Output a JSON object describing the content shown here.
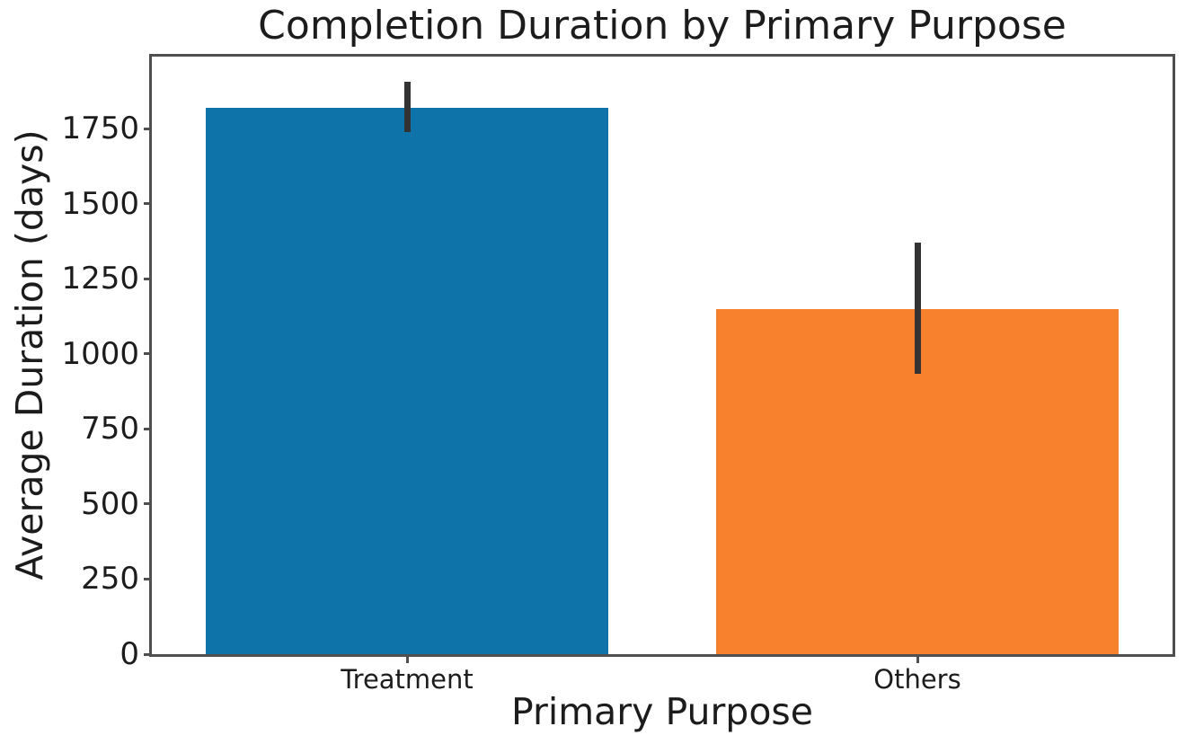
{
  "chart_data": {
    "type": "bar",
    "title": "Completion Duration by Primary Purpose",
    "xlabel": "Primary Purpose",
    "ylabel": "Average Duration (days)",
    "categories": [
      "Treatment",
      "Others"
    ],
    "values": [
      1820,
      1150
    ],
    "error_low": [
      1740,
      935
    ],
    "error_high": [
      1905,
      1370
    ],
    "bar_colors": [
      "#0d73a8",
      "#f8812e"
    ],
    "error_bar_color": "#333333",
    "axis_color": "#4f4f4f",
    "text_color": "#1c1c1c",
    "background": "#ffffff",
    "ylim": [
      0,
      1990
    ],
    "yticks": [
      0,
      250,
      500,
      750,
      1000,
      1250,
      1500,
      1750
    ],
    "grid": false,
    "legend": null,
    "bar_width_fraction": 0.79
  }
}
